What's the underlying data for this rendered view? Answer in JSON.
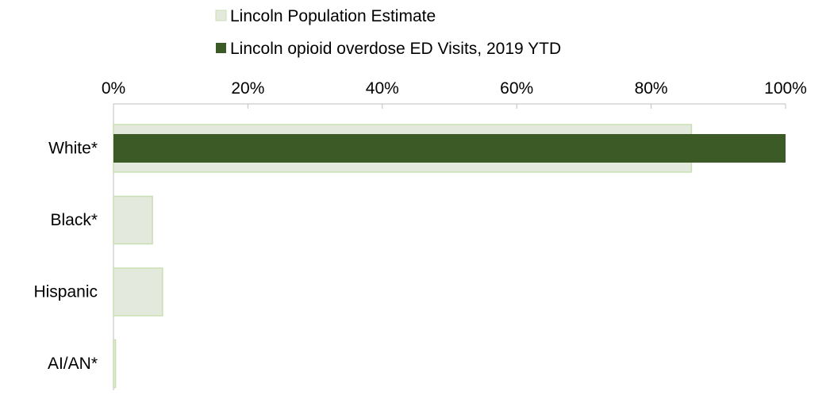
{
  "chart_data": {
    "type": "bar",
    "orientation": "horizontal",
    "categories": [
      "White*",
      "Black*",
      "Hispanic",
      "AI/AN*"
    ],
    "series": [
      {
        "name": "Lincoln Population Estimate",
        "values": [
          86,
          5.8,
          7.3,
          0.3
        ],
        "color": "#e3eadd",
        "border": "#c9dfb3"
      },
      {
        "name": "Lincoln opioid overdose ED Visits, 2019 YTD",
        "values": [
          100,
          0,
          0,
          0
        ],
        "color": "#3c5a26"
      }
    ],
    "xaxis": {
      "ticks": [
        "0%",
        "20%",
        "40%",
        "60%",
        "80%",
        "100%"
      ],
      "range": [
        0,
        100
      ],
      "position": "top"
    },
    "legend": {
      "position": "top"
    },
    "grid": false
  }
}
